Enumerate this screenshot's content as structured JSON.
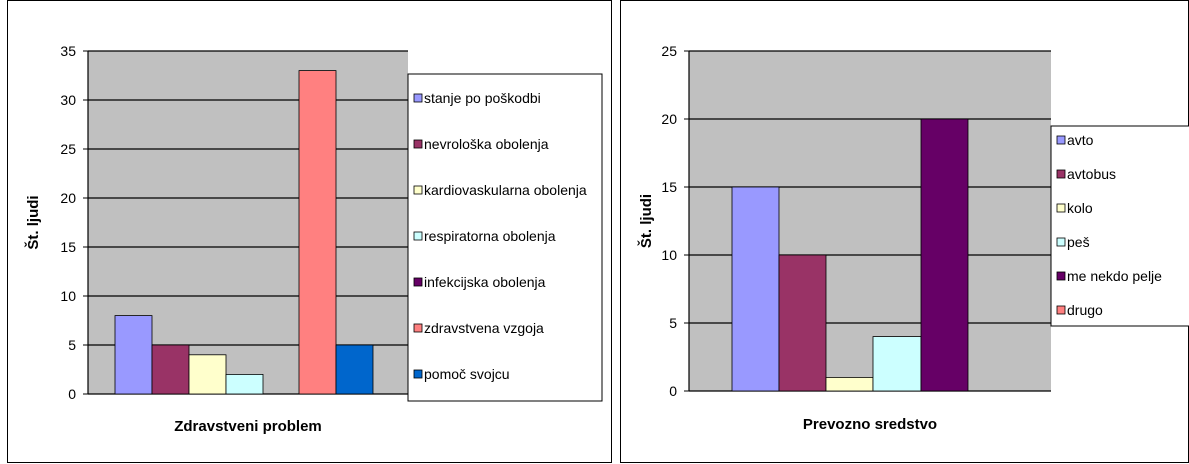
{
  "chart_data": [
    {
      "type": "bar",
      "ylabel": "Št. ljudi",
      "xlabel": "Zdravstveni  problem",
      "ylim": [
        0,
        35
      ],
      "yticks": [
        0,
        5,
        10,
        15,
        20,
        25,
        30,
        35
      ],
      "grid": true,
      "legend_position": "right",
      "plot_background": "#c0c0c0",
      "series": [
        {
          "name": "stanje po poškodbi",
          "value": 8,
          "color": "#9999ff"
        },
        {
          "name": "nevrološka obolenja",
          "value": 5,
          "color": "#993366"
        },
        {
          "name": "kardiovaskularna obolenja",
          "value": 4,
          "color": "#ffffcc"
        },
        {
          "name": "respiratorna obolenja",
          "value": 2,
          "color": "#ccffff"
        },
        {
          "name": "infekcijska obolenja",
          "value": 0,
          "color": "#660066"
        },
        {
          "name": "zdravstvena vzgoja",
          "value": 33,
          "color": "#ff8080"
        },
        {
          "name": "pomoč svojcu",
          "value": 5,
          "color": "#0066cc"
        }
      ]
    },
    {
      "type": "bar",
      "ylabel": "Št. ljudi",
      "xlabel": "Prevozno sredstvo",
      "ylim": [
        0,
        25
      ],
      "yticks": [
        0,
        5,
        10,
        15,
        20,
        25
      ],
      "grid": true,
      "legend_position": "right",
      "plot_background": "#c0c0c0",
      "series": [
        {
          "name": "avto",
          "value": 15,
          "color": "#9999ff"
        },
        {
          "name": "avtobus",
          "value": 10,
          "color": "#993366"
        },
        {
          "name": "kolo",
          "value": 1,
          "color": "#ffffcc"
        },
        {
          "name": "peš",
          "value": 4,
          "color": "#ccffff"
        },
        {
          "name": "me nekdo pelje",
          "value": 20,
          "color": "#660066"
        },
        {
          "name": "drugo",
          "value": 0,
          "color": "#ff8080"
        }
      ]
    }
  ]
}
